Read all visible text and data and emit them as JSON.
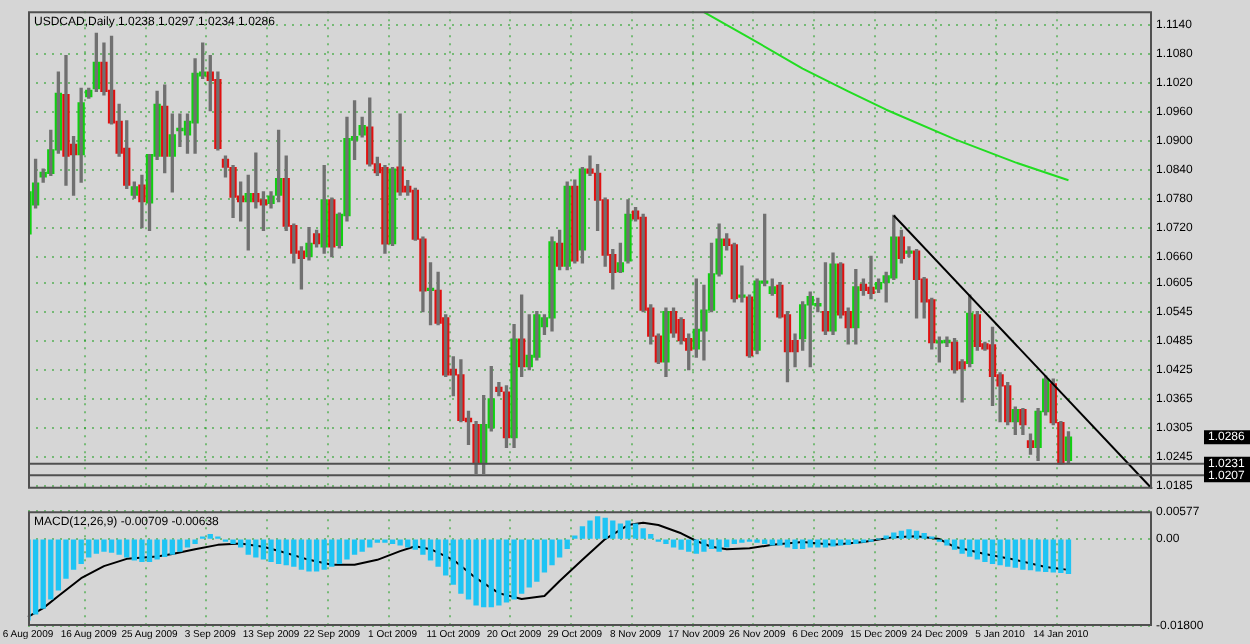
{
  "chart_data": [
    {
      "type": "candlestick",
      "title": "USDCAD,Daily 1.0238 1.0297 1.0234 1.0286",
      "categories": [
        null,
        null,
        null,
        null,
        null,
        null,
        null,
        null,
        null,
        null,
        null,
        null,
        null,
        null,
        null,
        null,
        null,
        null,
        null,
        null,
        null,
        null,
        null,
        null,
        null,
        null,
        null,
        null,
        null,
        null,
        null,
        null,
        null,
        null,
        null,
        null,
        null,
        null,
        null,
        null,
        null,
        null,
        null,
        null,
        null,
        null,
        null,
        null,
        null,
        null,
        null,
        null,
        null,
        null,
        null,
        null,
        null,
        null,
        null,
        null,
        null,
        null,
        null,
        null,
        null,
        null,
        null,
        null,
        null,
        null,
        null,
        null,
        null,
        null,
        null,
        null,
        null,
        null,
        null,
        null,
        null,
        null,
        null,
        null,
        null,
        null,
        null,
        null,
        null,
        null,
        null,
        null,
        null,
        null,
        null,
        null,
        null,
        null,
        null,
        null,
        null,
        null,
        null,
        null,
        null,
        null,
        null,
        null,
        null,
        null,
        null,
        null,
        null,
        null,
        null,
        null,
        null,
        null,
        null,
        null,
        null,
        null,
        null,
        null,
        null,
        null,
        null,
        null,
        null,
        null,
        null,
        null,
        null,
        null,
        null,
        null,
        null,
        null,
        null,
        null,
        null,
        null,
        null,
        null,
        null,
        null,
        null,
        null,
        null
      ],
      "ohlc": [
        [
          1.0707,
          1.0801,
          1.068,
          1.0794
        ],
        [
          1.0767,
          1.0861,
          1.0761,
          1.0812
        ],
        [
          1.0825,
          1.0841,
          1.0814,
          1.0834
        ],
        [
          1.0832,
          1.0921,
          1.0828,
          1.0881
        ],
        [
          1.0881,
          1.1042,
          1.0874,
          1.0998
        ],
        [
          1.0995,
          1.1076,
          1.0808,
          1.0868
        ],
        [
          1.0892,
          1.0908,
          1.0787,
          1.0871
        ],
        [
          1.0871,
          1.1008,
          1.0814,
          1.0978
        ],
        [
          1.0991,
          1.1008,
          1.0988,
          1.1004
        ],
        [
          1.1008,
          1.1122,
          1.1002,
          1.1062
        ],
        [
          1.1062,
          1.1102,
          1.0995,
          1.1002
        ],
        [
          1.1004,
          1.1116,
          1.0935,
          1.0937
        ],
        [
          1.094,
          1.0975,
          1.0868,
          1.0874
        ],
        [
          1.0884,
          1.0941,
          1.0801,
          1.0808
        ],
        [
          1.0787,
          1.0814,
          1.0781,
          1.0804
        ],
        [
          1.0808,
          1.0828,
          1.072,
          1.0774
        ],
        [
          1.0771,
          1.0871,
          1.0714,
          1.0871
        ],
        [
          1.0868,
          1.1002,
          1.0861,
          1.0975
        ],
        [
          1.0971,
          1.1015,
          1.0834,
          1.0868
        ],
        [
          1.0868,
          1.0955,
          1.0794,
          1.0912
        ],
        [
          1.0921,
          1.0955,
          1.0888,
          1.0921
        ],
        [
          1.0912,
          1.0955,
          1.0874,
          1.094
        ],
        [
          1.0937,
          1.1069,
          1.0874,
          1.1039
        ],
        [
          1.1034,
          1.1102,
          1.1029,
          1.1042
        ],
        [
          1.1042,
          1.1076,
          1.0962,
          1.1025
        ],
        [
          1.1026,
          1.1042,
          1.0881,
          1.0884
        ],
        [
          1.0861,
          1.0868,
          1.0825,
          1.0845
        ],
        [
          1.0844,
          1.0848,
          1.0741,
          1.0783
        ],
        [
          1.0785,
          1.0814,
          1.0734,
          1.0774
        ],
        [
          1.0774,
          1.0828,
          1.0674,
          1.079
        ],
        [
          1.079,
          1.0874,
          1.0761,
          1.0774
        ],
        [
          1.0777,
          1.0794,
          1.0714,
          1.0767
        ],
        [
          1.077,
          1.0794,
          1.0761,
          1.0785
        ],
        [
          1.0787,
          1.0921,
          1.0774,
          1.0821
        ],
        [
          1.0821,
          1.0868,
          1.0714,
          1.0723
        ],
        [
          1.0724,
          1.0727,
          1.0647,
          1.0667
        ],
        [
          1.0671,
          1.068,
          1.0593,
          1.0656
        ],
        [
          1.066,
          1.072,
          1.0653,
          1.0687
        ],
        [
          1.0707,
          1.0714,
          1.068,
          1.0687
        ],
        [
          1.068,
          1.0848,
          1.0667,
          1.0777
        ],
        [
          1.0777,
          1.0781,
          1.066,
          1.068
        ],
        [
          1.0683,
          1.075,
          1.0678,
          1.0747
        ],
        [
          1.0745,
          1.0948,
          1.0734,
          1.0904
        ],
        [
          1.0901,
          1.0982,
          1.0861,
          1.0908
        ],
        [
          1.0912,
          1.0948,
          1.0908,
          1.0931
        ],
        [
          1.0928,
          1.0988,
          1.0848,
          1.0852
        ],
        [
          1.0852,
          1.0865,
          1.0828,
          1.0834
        ],
        [
          1.0844,
          1.0848,
          1.0667,
          1.0686
        ],
        [
          1.0687,
          1.0844,
          1.0683,
          1.0841
        ],
        [
          1.0845,
          1.0955,
          1.0787,
          1.0794
        ],
        [
          1.0805,
          1.0817,
          1.0787,
          1.0794
        ],
        [
          1.0797,
          1.0801,
          1.0694,
          1.0696
        ],
        [
          1.0696,
          1.07,
          1.0546,
          1.0589
        ],
        [
          1.059,
          1.0647,
          1.0519,
          1.059
        ],
        [
          1.059,
          1.0627,
          1.0519,
          1.0522
        ],
        [
          1.0533,
          1.0539,
          1.0412,
          1.0415
        ],
        [
          1.0426,
          1.0452,
          1.0372,
          1.0415
        ],
        [
          1.0415,
          1.0446,
          1.0318,
          1.0321
        ],
        [
          1.0325,
          1.0339,
          1.0271,
          1.0318
        ],
        [
          1.0312,
          1.0318,
          1.0211,
          1.0231
        ],
        [
          1.0231,
          1.0372,
          1.0211,
          1.0312
        ],
        [
          1.0305,
          1.0432,
          1.0299,
          1.0365
        ],
        [
          1.0389,
          1.0399,
          1.0372,
          1.0381
        ],
        [
          1.0379,
          1.0392,
          1.0265,
          1.0285
        ],
        [
          1.0285,
          1.0519,
          1.0265,
          1.0489
        ],
        [
          1.0489,
          1.058,
          1.0412,
          1.0432
        ],
        [
          1.0432,
          1.0539,
          1.0426,
          1.0455
        ],
        [
          1.0452,
          1.0546,
          1.0446,
          1.0539
        ],
        [
          1.0515,
          1.0539,
          1.0499,
          1.0533
        ],
        [
          1.0533,
          1.07,
          1.0506,
          1.069
        ],
        [
          1.0687,
          1.0714,
          1.0633,
          1.064
        ],
        [
          1.064,
          1.0814,
          1.0633,
          1.0805
        ],
        [
          1.0805,
          1.0818,
          1.0647,
          1.0651
        ],
        [
          1.0674,
          1.0844,
          1.0647,
          1.0841
        ],
        [
          1.0841,
          1.0868,
          1.0828,
          1.0833
        ],
        [
          1.0832,
          1.085,
          1.0714,
          1.0777
        ],
        [
          1.0777,
          1.0781,
          1.064,
          1.0663
        ],
        [
          1.0664,
          1.0674,
          1.0593,
          1.0627
        ],
        [
          1.0629,
          1.0687,
          1.0627,
          1.0647
        ],
        [
          1.0651,
          1.0777,
          1.0647,
          1.0747
        ],
        [
          1.0754,
          1.0761,
          1.0734,
          1.0738
        ],
        [
          1.0741,
          1.0747,
          1.0546,
          1.0549
        ],
        [
          1.0553,
          1.056,
          1.0479,
          1.0495
        ],
        [
          1.0495,
          1.0499,
          1.0439,
          1.0442
        ],
        [
          1.0442,
          1.0553,
          1.0412,
          1.0546
        ],
        [
          1.0546,
          1.0553,
          1.0493,
          1.0502
        ],
        [
          1.0529,
          1.0533,
          1.0479,
          1.0486
        ],
        [
          1.049,
          1.0499,
          1.0426,
          1.0466
        ],
        [
          1.0469,
          1.0613,
          1.0452,
          1.0509
        ],
        [
          1.0506,
          1.06,
          1.0446,
          1.0549
        ],
        [
          1.0549,
          1.0687,
          1.0546,
          1.0624
        ],
        [
          1.0624,
          1.0727,
          1.062,
          1.0696
        ],
        [
          1.0696,
          1.0707,
          1.0674,
          1.0683
        ],
        [
          1.0684,
          1.0687,
          1.0566,
          1.0573
        ],
        [
          1.0576,
          1.064,
          1.0566,
          1.0576
        ],
        [
          1.0576,
          1.058,
          1.0452,
          1.0455
        ],
        [
          1.0466,
          1.0613,
          1.0459,
          1.0609
        ],
        [
          1.0605,
          1.0747,
          1.06,
          1.0605
        ],
        [
          1.0584,
          1.0613,
          1.058,
          1.0597
        ],
        [
          1.06,
          1.0606,
          1.0533,
          1.0535
        ],
        [
          1.0539,
          1.0546,
          1.0401,
          1.0463
        ],
        [
          1.0486,
          1.0499,
          1.0432,
          1.0463
        ],
        [
          1.049,
          1.0566,
          1.0466,
          1.056
        ],
        [
          1.056,
          1.0586,
          1.0432,
          1.0577
        ],
        [
          1.0558,
          1.0573,
          1.0546,
          1.0558
        ],
        [
          1.0546,
          1.0647,
          1.0499,
          1.0506
        ],
        [
          1.0506,
          1.0667,
          1.0499,
          1.0644
        ],
        [
          1.0644,
          1.0647,
          1.0533,
          1.0539
        ],
        [
          1.0546,
          1.0553,
          1.0479,
          1.0513
        ],
        [
          1.0513,
          1.0633,
          1.0479,
          1.0597
        ],
        [
          1.0602,
          1.0613,
          1.058,
          1.059
        ],
        [
          1.0596,
          1.066,
          1.0573,
          1.0584
        ],
        [
          1.0593,
          1.0613,
          1.0586,
          1.0606
        ],
        [
          1.0606,
          1.0627,
          1.0566,
          1.062
        ],
        [
          1.0616,
          1.0745,
          1.0613,
          1.07
        ],
        [
          1.07,
          1.0714,
          1.0647,
          1.0656
        ],
        [
          1.0667,
          1.068,
          1.066,
          1.0667
        ],
        [
          1.0671,
          1.0674,
          1.0533,
          1.0613
        ],
        [
          1.0613,
          1.0616,
          1.0533,
          1.0566
        ],
        [
          1.057,
          1.0573,
          1.0469,
          1.0482
        ],
        [
          1.0481,
          1.0493,
          1.0442,
          1.0481
        ],
        [
          1.0482,
          1.0493,
          1.0474,
          1.0482
        ],
        [
          1.0482,
          1.049,
          1.0419,
          1.0426
        ],
        [
          1.0442,
          1.0446,
          1.0359,
          1.0428
        ],
        [
          1.0439,
          1.058,
          1.0432,
          1.0542
        ],
        [
          1.0539,
          1.0546,
          1.0466,
          1.0474
        ],
        [
          1.0479,
          1.0482,
          1.0466,
          1.0469
        ],
        [
          1.0477,
          1.0513,
          1.0352,
          1.0412
        ],
        [
          1.0415,
          1.0419,
          1.0318,
          1.0392
        ],
        [
          1.0392,
          1.0399,
          1.0312,
          1.0318
        ],
        [
          1.0318,
          1.0348,
          1.0292,
          1.0343
        ],
        [
          1.0343,
          1.0345,
          1.0292,
          1.0312
        ],
        [
          1.0278,
          1.0292,
          1.0251,
          1.0265
        ],
        [
          1.0265,
          1.0345,
          1.0238,
          1.0339
        ],
        [
          1.0339,
          1.0412,
          1.0332,
          1.0406
        ],
        [
          1.0396,
          1.0406,
          1.0312,
          1.0316
        ],
        [
          1.0316,
          1.0318,
          1.0231,
          1.0231
        ],
        [
          1.0238,
          1.0297,
          1.0234,
          1.0286
        ],
        null,
        null,
        null,
        null,
        null,
        null,
        null,
        null,
        null,
        null,
        null
      ],
      "colors": [
        "#10d010",
        "#10d010",
        "#10d010",
        "#10d010",
        "#10d010",
        "#e01010",
        "#e01010",
        "#10d010",
        "#10d010",
        "#10d010",
        "#e01010",
        "#e01010",
        "#e01010",
        "#e01010",
        "#10d010",
        "#e01010",
        "#10d010",
        "#10d010",
        "#e01010",
        "#10d010",
        "#10d010",
        "#10d010",
        "#10d010",
        "#10d010",
        "#e01010",
        "#e01010",
        "#e01010",
        "#e01010",
        "#e01010",
        "#10d010",
        "#e01010",
        "#e01010",
        "#10d010",
        "#10d010",
        "#e01010",
        "#e01010",
        "#e01010",
        "#10d010",
        "#e01010",
        "#10d010",
        "#e01010",
        "#10d010",
        "#10d010",
        "#10d010",
        "#10d010",
        "#e01010",
        "#e01010",
        "#e01010",
        "#10d010",
        "#e01010",
        "#e01010",
        "#e01010",
        "#e01010",
        "#10d010",
        "#e01010",
        "#e01010",
        "#e01010",
        "#e01010",
        "#e01010",
        "#e01010",
        "#10d010",
        "#10d010",
        "#e01010",
        "#e01010",
        "#10d010",
        "#e01010",
        "#10d010",
        "#10d010",
        "#10d010",
        "#10d010",
        "#e01010",
        "#10d010",
        "#e01010",
        "#10d010",
        "#e01010",
        "#e01010",
        "#e01010",
        "#e01010",
        "#10d010",
        "#10d010",
        "#e01010",
        "#e01010",
        "#e01010",
        "#e01010",
        "#10d010",
        "#e01010",
        "#e01010",
        "#e01010",
        "#10d010",
        "#10d010",
        "#10d010",
        "#10d010",
        "#e01010",
        "#e01010",
        "#10d010",
        "#e01010",
        "#10d010",
        "#10d010",
        "#10d010",
        "#e01010",
        "#e01010",
        "#e01010",
        "#10d010",
        "#10d010",
        "#10d010",
        "#e01010",
        "#10d010",
        "#e01010",
        "#e01010",
        "#10d010",
        "#e01010",
        "#e01010",
        "#10d010",
        "#10d010",
        "#10d010",
        "#e01010",
        "#10d010",
        "#e01010",
        "#e01010",
        "#e01010",
        "#10d010",
        "#10d010",
        "#e01010",
        "#e01010",
        "#10d010",
        "#e01010",
        "#e01010",
        "#e01010",
        "#e01010",
        "#e01010",
        "#10d010",
        "#e01010",
        "#e01010",
        "#10d010",
        "#10d010",
        "#e01010",
        "#e01010",
        "#10d010",
        null,
        null,
        null,
        null,
        null,
        null,
        null,
        null,
        null,
        null,
        null
      ],
      "series": [
        {
          "type": "line",
          "color": "#22dd22",
          "values": [
            null,
            null,
            null,
            null,
            null,
            null,
            null,
            null,
            null,
            null,
            null,
            null,
            null,
            null,
            null,
            null,
            null,
            null,
            null,
            null,
            null,
            null,
            null,
            null,
            null,
            null,
            null,
            null,
            null,
            null,
            null,
            null,
            null,
            null,
            null,
            null,
            null,
            null,
            null,
            null,
            null,
            null,
            null,
            null,
            null,
            null,
            null,
            null,
            null,
            null,
            null,
            null,
            null,
            null,
            null,
            null,
            null,
            null,
            null,
            null,
            null,
            null,
            null,
            null,
            null,
            null,
            null,
            null,
            null,
            null,
            null,
            null,
            null,
            null,
            null,
            null,
            null,
            null,
            null,
            null,
            null,
            null,
            null,
            null,
            null,
            null,
            null,
            null,
            null,
            1.1166,
            null,
            null,
            null,
            null,
            null,
            1.1113,
            null,
            null,
            null,
            null,
            null,
            null,
            1.1049,
            null,
            null,
            null,
            null,
            null,
            1.1002,
            null,
            null,
            null,
            null,
            1.0964,
            null,
            null,
            null,
            null,
            null,
            null,
            null,
            null,
            1.0903,
            null,
            null,
            null,
            null,
            null,
            null,
            null,
            1.0855,
            null,
            null,
            null,
            null,
            null,
            null,
            1.0818,
            null,
            null,
            null,
            null,
            null,
            null,
            null,
            null,
            null,
            null,
            null
          ]
        },
        {
          "type": "line",
          "color": "#000000",
          "values": [
            null,
            null,
            null,
            null,
            null,
            null,
            null,
            null,
            null,
            null,
            null,
            null,
            null,
            null,
            null,
            null,
            null,
            null,
            null,
            null,
            null,
            null,
            null,
            null,
            null,
            null,
            null,
            null,
            null,
            null,
            null,
            null,
            null,
            null,
            null,
            null,
            null,
            null,
            null,
            null,
            null,
            null,
            null,
            null,
            null,
            null,
            null,
            null,
            null,
            null,
            null,
            null,
            null,
            null,
            null,
            null,
            null,
            null,
            null,
            null,
            null,
            null,
            null,
            null,
            null,
            null,
            null,
            null,
            null,
            null,
            null,
            null,
            null,
            null,
            null,
            null,
            null,
            null,
            null,
            null,
            null,
            null,
            null,
            null,
            null,
            null,
            null,
            null,
            null,
            null,
            null,
            null,
            null,
            null,
            null,
            null,
            null,
            null,
            null,
            null,
            null,
            null,
            null,
            null,
            null,
            null,
            null,
            null,
            null,
            null,
            null,
            null,
            null,
            null,
            1.0745,
            null,
            null,
            null,
            null,
            null,
            null,
            null,
            null,
            null,
            null,
            null,
            null,
            null,
            null,
            null,
            null,
            null,
            null,
            null,
            null,
            null,
            null,
            null,
            null,
            null,
            null,
            null,
            null,
            null,
            null,
            null,
            null,
            null,
            1.0179
          ]
        }
      ],
      "ylim": [
        1.0179,
        1.1168
      ],
      "yticks": [
        {
          "value": 1.114,
          "label": "1.1140"
        },
        {
          "value": 1.108,
          "label": "1.1080"
        },
        {
          "value": 1.102,
          "label": "1.1020"
        },
        {
          "value": 1.096,
          "label": "1.0960"
        },
        {
          "value": 1.09,
          "label": "1.0900"
        },
        {
          "value": 1.084,
          "label": "1.0840"
        },
        {
          "value": 1.078,
          "label": "1.0780"
        },
        {
          "value": 1.072,
          "label": "1.0720"
        },
        {
          "value": 1.066,
          "label": "1.0660"
        },
        {
          "value": 1.0605,
          "label": "1.0605"
        },
        {
          "value": 1.0545,
          "label": "1.0545"
        },
        {
          "value": 1.0485,
          "label": "1.0485"
        },
        {
          "value": 1.0425,
          "label": "1.0425"
        },
        {
          "value": 1.0365,
          "label": "1.0365"
        },
        {
          "value": 1.0305,
          "label": "1.0305"
        },
        {
          "value": 1.0245,
          "label": "1.0245"
        },
        {
          "value": 1.0185,
          "label": "1.0185"
        }
      ],
      "ref_lines": [
        {
          "axis": "y",
          "value": 1.0231,
          "label": "1.0231",
          "color": "#505050"
        },
        {
          "axis": "y",
          "value": 1.0207,
          "label": "1.0207",
          "color": "#505050"
        }
      ],
      "annotations": [
        "1.0286"
      ],
      "grid": true,
      "tick_labels": "y"
    },
    {
      "type": "bar",
      "title": "MACD(12,26,9) -0.00709 -0.00638",
      "categories": [
        "6 Aug 2009",
        null,
        null,
        null,
        null,
        null,
        null,
        null,
        "16 Aug 2009",
        null,
        null,
        null,
        null,
        null,
        null,
        null,
        "25 Aug 2009",
        null,
        null,
        null,
        null,
        null,
        null,
        null,
        "3 Sep 2009",
        null,
        null,
        null,
        null,
        null,
        null,
        null,
        "13 Sep 2009",
        null,
        null,
        null,
        null,
        null,
        null,
        null,
        "22 Sep 2009",
        null,
        null,
        null,
        null,
        null,
        null,
        null,
        "1 Oct 2009",
        null,
        null,
        null,
        null,
        null,
        null,
        null,
        "11 Oct 2009",
        null,
        null,
        null,
        null,
        null,
        null,
        null,
        "20 Oct 2009",
        null,
        null,
        null,
        null,
        null,
        null,
        null,
        "29 Oct 2009",
        null,
        null,
        null,
        null,
        null,
        null,
        null,
        "8 Nov 2009",
        null,
        null,
        null,
        null,
        null,
        null,
        null,
        "17 Nov 2009",
        null,
        null,
        null,
        null,
        null,
        null,
        null,
        "26 Nov 2009",
        null,
        null,
        null,
        null,
        null,
        null,
        null,
        "6 Dec 2009",
        null,
        null,
        null,
        null,
        null,
        null,
        null,
        "15 Dec 2009",
        null,
        null,
        null,
        null,
        null,
        null,
        null,
        "24 Dec 2009",
        null,
        null,
        null,
        null,
        null,
        null,
        null,
        "5 Jan 2010",
        null,
        null,
        null,
        null,
        null,
        null,
        null,
        "14 Jan 2010",
        null,
        null,
        null,
        null,
        null,
        null,
        null,
        null,
        null,
        null,
        null,
        null
      ],
      "series": [
        {
          "type": "bar",
          "color": "#1ec4f4",
          "values": [
            -0.0167,
            -0.0155,
            -0.0143,
            -0.0124,
            -0.0105,
            -0.0081,
            -0.0062,
            -0.005,
            -0.0037,
            -0.0029,
            -0.0025,
            -0.0027,
            -0.0031,
            -0.0037,
            -0.0043,
            -0.0046,
            -0.0046,
            -0.0041,
            -0.0036,
            -0.0031,
            -0.0025,
            -0.0016,
            -0.0009,
            0.0004,
            0.0009,
            0.0004,
            -0.0004,
            -0.0009,
            -0.0016,
            -0.0031,
            -0.0037,
            -0.0041,
            -0.0046,
            -0.005,
            -0.0053,
            -0.0056,
            -0.0062,
            -0.0066,
            -0.0066,
            -0.0062,
            -0.0056,
            -0.005,
            -0.0041,
            -0.0031,
            -0.0025,
            -0.0016,
            -0.0006,
            -0.0006,
            -0.0009,
            -0.0012,
            -0.0016,
            -0.0021,
            -0.0031,
            -0.0043,
            -0.0056,
            -0.0074,
            -0.0093,
            -0.0112,
            -0.0124,
            -0.0136,
            -0.014,
            -0.014,
            -0.0136,
            -0.013,
            -0.0124,
            -0.0112,
            -0.0099,
            -0.0087,
            -0.0068,
            -0.0053,
            -0.0037,
            -0.0019,
            0.0006,
            0.0025,
            0.0037,
            0.0046,
            0.0043,
            0.0037,
            0.0031,
            0.0037,
            0.0031,
            0.0021,
            0.0009,
            -0.0004,
            -0.0009,
            -0.0016,
            -0.0021,
            -0.0025,
            -0.0029,
            -0.0025,
            -0.0019,
            -0.0025,
            -0.0016,
            -0.0009,
            -0.0006,
            -0.0004,
            -0.0006,
            -0.0009,
            -0.0012,
            -0.0012,
            -0.0016,
            -0.0019,
            -0.0019,
            -0.0016,
            -0.0016,
            -0.0016,
            -0.0014,
            -0.0012,
            -0.0011,
            -0.0009,
            -0.0006,
            -0.0004,
            0,
            0.0006,
            0.0012,
            0.0016,
            0.0019,
            0.0016,
            0.0011,
            0.0004,
            -0.0004,
            -0.0012,
            -0.0021,
            -0.0029,
            -0.0035,
            -0.0041,
            -0.0046,
            -0.005,
            -0.0053,
            -0.0056,
            -0.0058,
            -0.0062,
            -0.0063,
            -0.0066,
            -0.0067,
            -0.0068,
            -0.0069,
            -0.00709,
            null,
            null,
            null,
            null,
            null,
            null,
            null,
            null,
            null,
            null,
            null
          ]
        },
        {
          "type": "line",
          "color": "#000000",
          "values": [
            -0.0161,
            null,
            -0.0143,
            null,
            -0.0118,
            null,
            null,
            -0.0081,
            null,
            null,
            -0.0056,
            null,
            null,
            -0.0041,
            null,
            null,
            null,
            -0.0036,
            null,
            -0.0031,
            null,
            null,
            -0.0021,
            null,
            null,
            -0.0012,
            null,
            null,
            -0.0009,
            null,
            null,
            -0.0016,
            null,
            null,
            -0.0029,
            null,
            null,
            -0.0043,
            null,
            null,
            -0.0053,
            null,
            null,
            -0.0053,
            null,
            null,
            -0.0043,
            null,
            null,
            -0.0025,
            null,
            -0.0015,
            null,
            -0.0021,
            null,
            null,
            -0.0043,
            null,
            null,
            -0.0081,
            null,
            null,
            -0.0112,
            null,
            null,
            -0.0124,
            null,
            null,
            -0.0118,
            null,
            -0.0087,
            null,
            null,
            -0.0043,
            null,
            null,
            0,
            null,
            null,
            0.0029,
            null,
            0.0034,
            null,
            0.0029,
            null,
            null,
            0.0012,
            null,
            -0.0004,
            null,
            -0.0016,
            null,
            -0.0021,
            null,
            null,
            -0.0019,
            null,
            null,
            -0.0012,
            null,
            null,
            null,
            -0.0006,
            null,
            null,
            null,
            -0.0012,
            null,
            null,
            null,
            -0.0006,
            null,
            null,
            null,
            0.0004,
            null,
            null,
            0.0006,
            null,
            null,
            0,
            null,
            -0.0016,
            null,
            null,
            null,
            -0.0031,
            null,
            null,
            null,
            -0.0043,
            null,
            null,
            null,
            -0.0058,
            null,
            null,
            -0.00638,
            null,
            null,
            null,
            null,
            null,
            null,
            null,
            null,
            null,
            null,
            null
          ]
        }
      ],
      "ylim": [
        -0.018,
        0.00577
      ],
      "yticks": [
        {
          "value": 0.00577,
          "label": "0.00577"
        },
        {
          "value": 0,
          "label": "0.00"
        },
        {
          "value": -0.018,
          "label": "-0.01800"
        }
      ],
      "grid": true
    }
  ]
}
